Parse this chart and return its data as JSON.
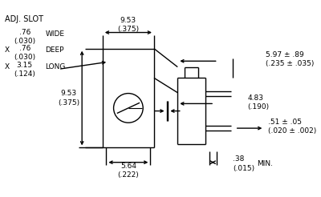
{
  "bg_color": "#ffffff",
  "line_color": "#000000",
  "text_color": "#000000",
  "figsize": [
    4.0,
    2.46
  ],
  "dpi": 100,
  "adj_slot_text": "ADJ. SLOT",
  "wide_label": ".76\n(.030)",
  "wide_word": "WIDE",
  "deep_x": "X",
  "deep_label": ".76\n(.030)",
  "deep_word": "DEEP",
  "long_x": "X",
  "long_label": "3.15\n(.124)",
  "long_word": "LONG",
  "dim_top": "9.53\n(.375)",
  "dim_height": "9.53\n(.375)",
  "dim_bottom": "5.64\n(.222)",
  "dim_right1": "5.97 ± .89\n(.235 ± .035)",
  "dim_right2": "4.83\n(.190)",
  "dim_right3": ".51 ± .05\n(.020 ± .002)",
  "dim_right4": ".38\n(.015)",
  "dim_right4_word": "MIN.",
  "font_size_label": 6.5,
  "font_size_title": 7.0
}
